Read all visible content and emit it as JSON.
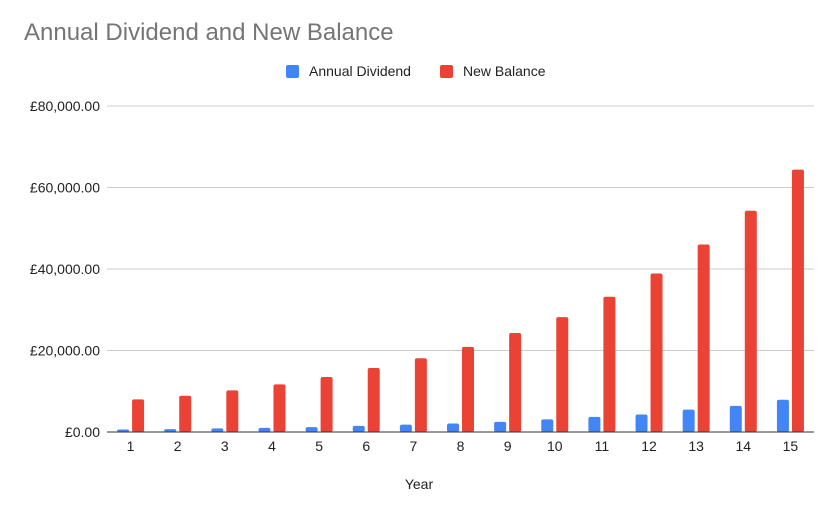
{
  "chart_data": {
    "type": "bar",
    "title": "Annual Dividend and New Balance",
    "xlabel": "Year",
    "ylabel": "",
    "categories": [
      "1",
      "2",
      "3",
      "4",
      "5",
      "6",
      "7",
      "8",
      "9",
      "10",
      "11",
      "12",
      "13",
      "14",
      "15"
    ],
    "series": [
      {
        "name": "Annual Dividend",
        "color": "#4285f4",
        "values": [
          600,
          700,
          900,
          1000,
          1200,
          1500,
          1800,
          2100,
          2500,
          3100,
          3700,
          4300,
          5500,
          6400,
          7900
        ]
      },
      {
        "name": "New Balance",
        "color": "#ea4335",
        "values": [
          8000,
          8900,
          10200,
          11700,
          13500,
          15700,
          18100,
          20900,
          24300,
          28200,
          33200,
          38900,
          46000,
          54300,
          64400
        ]
      }
    ],
    "ylim": [
      0,
      80000
    ],
    "yticks": [
      0,
      20000,
      40000,
      60000,
      80000
    ],
    "ytick_labels": [
      "£0.00",
      "£20,000.00",
      "£40,000.00",
      "£60,000.00",
      "£80,000.00"
    ],
    "grid": true,
    "legend_position": "top"
  }
}
